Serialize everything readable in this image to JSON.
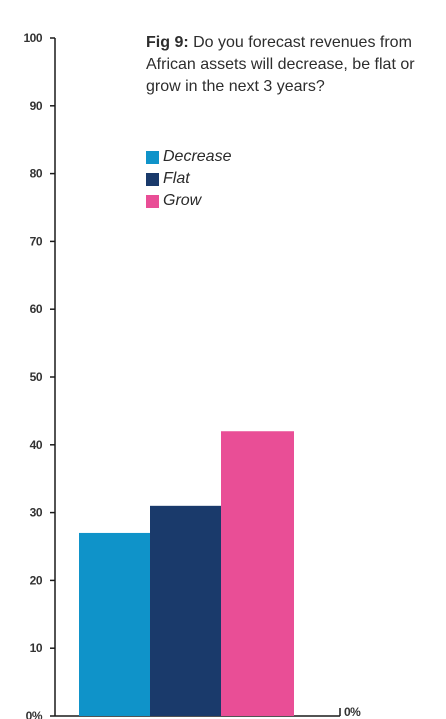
{
  "caption": {
    "label": "Fig 9:",
    "text": "Do you forecast revenues from African assets will decrease, be flat or grow in the next 3 years?"
  },
  "chart_data": {
    "type": "bar",
    "categories": [
      "Decrease",
      "Flat",
      "Grow"
    ],
    "values": [
      27,
      31,
      42
    ],
    "colors": [
      "#0f93c9",
      "#1a3a6b",
      "#e94e96"
    ],
    "ylim": [
      0,
      100
    ],
    "y_ticks": [
      0,
      10,
      20,
      30,
      40,
      50,
      60,
      70,
      80,
      90,
      100
    ],
    "y_tick_labels": [
      "0%",
      "10",
      "20",
      "30",
      "40",
      "50",
      "60",
      "70",
      "80",
      "90",
      "100"
    ],
    "right_label": "0%",
    "legend": [
      "Decrease",
      "Flat",
      "Grow"
    ],
    "legend_position": "top-right",
    "grid": false
  }
}
